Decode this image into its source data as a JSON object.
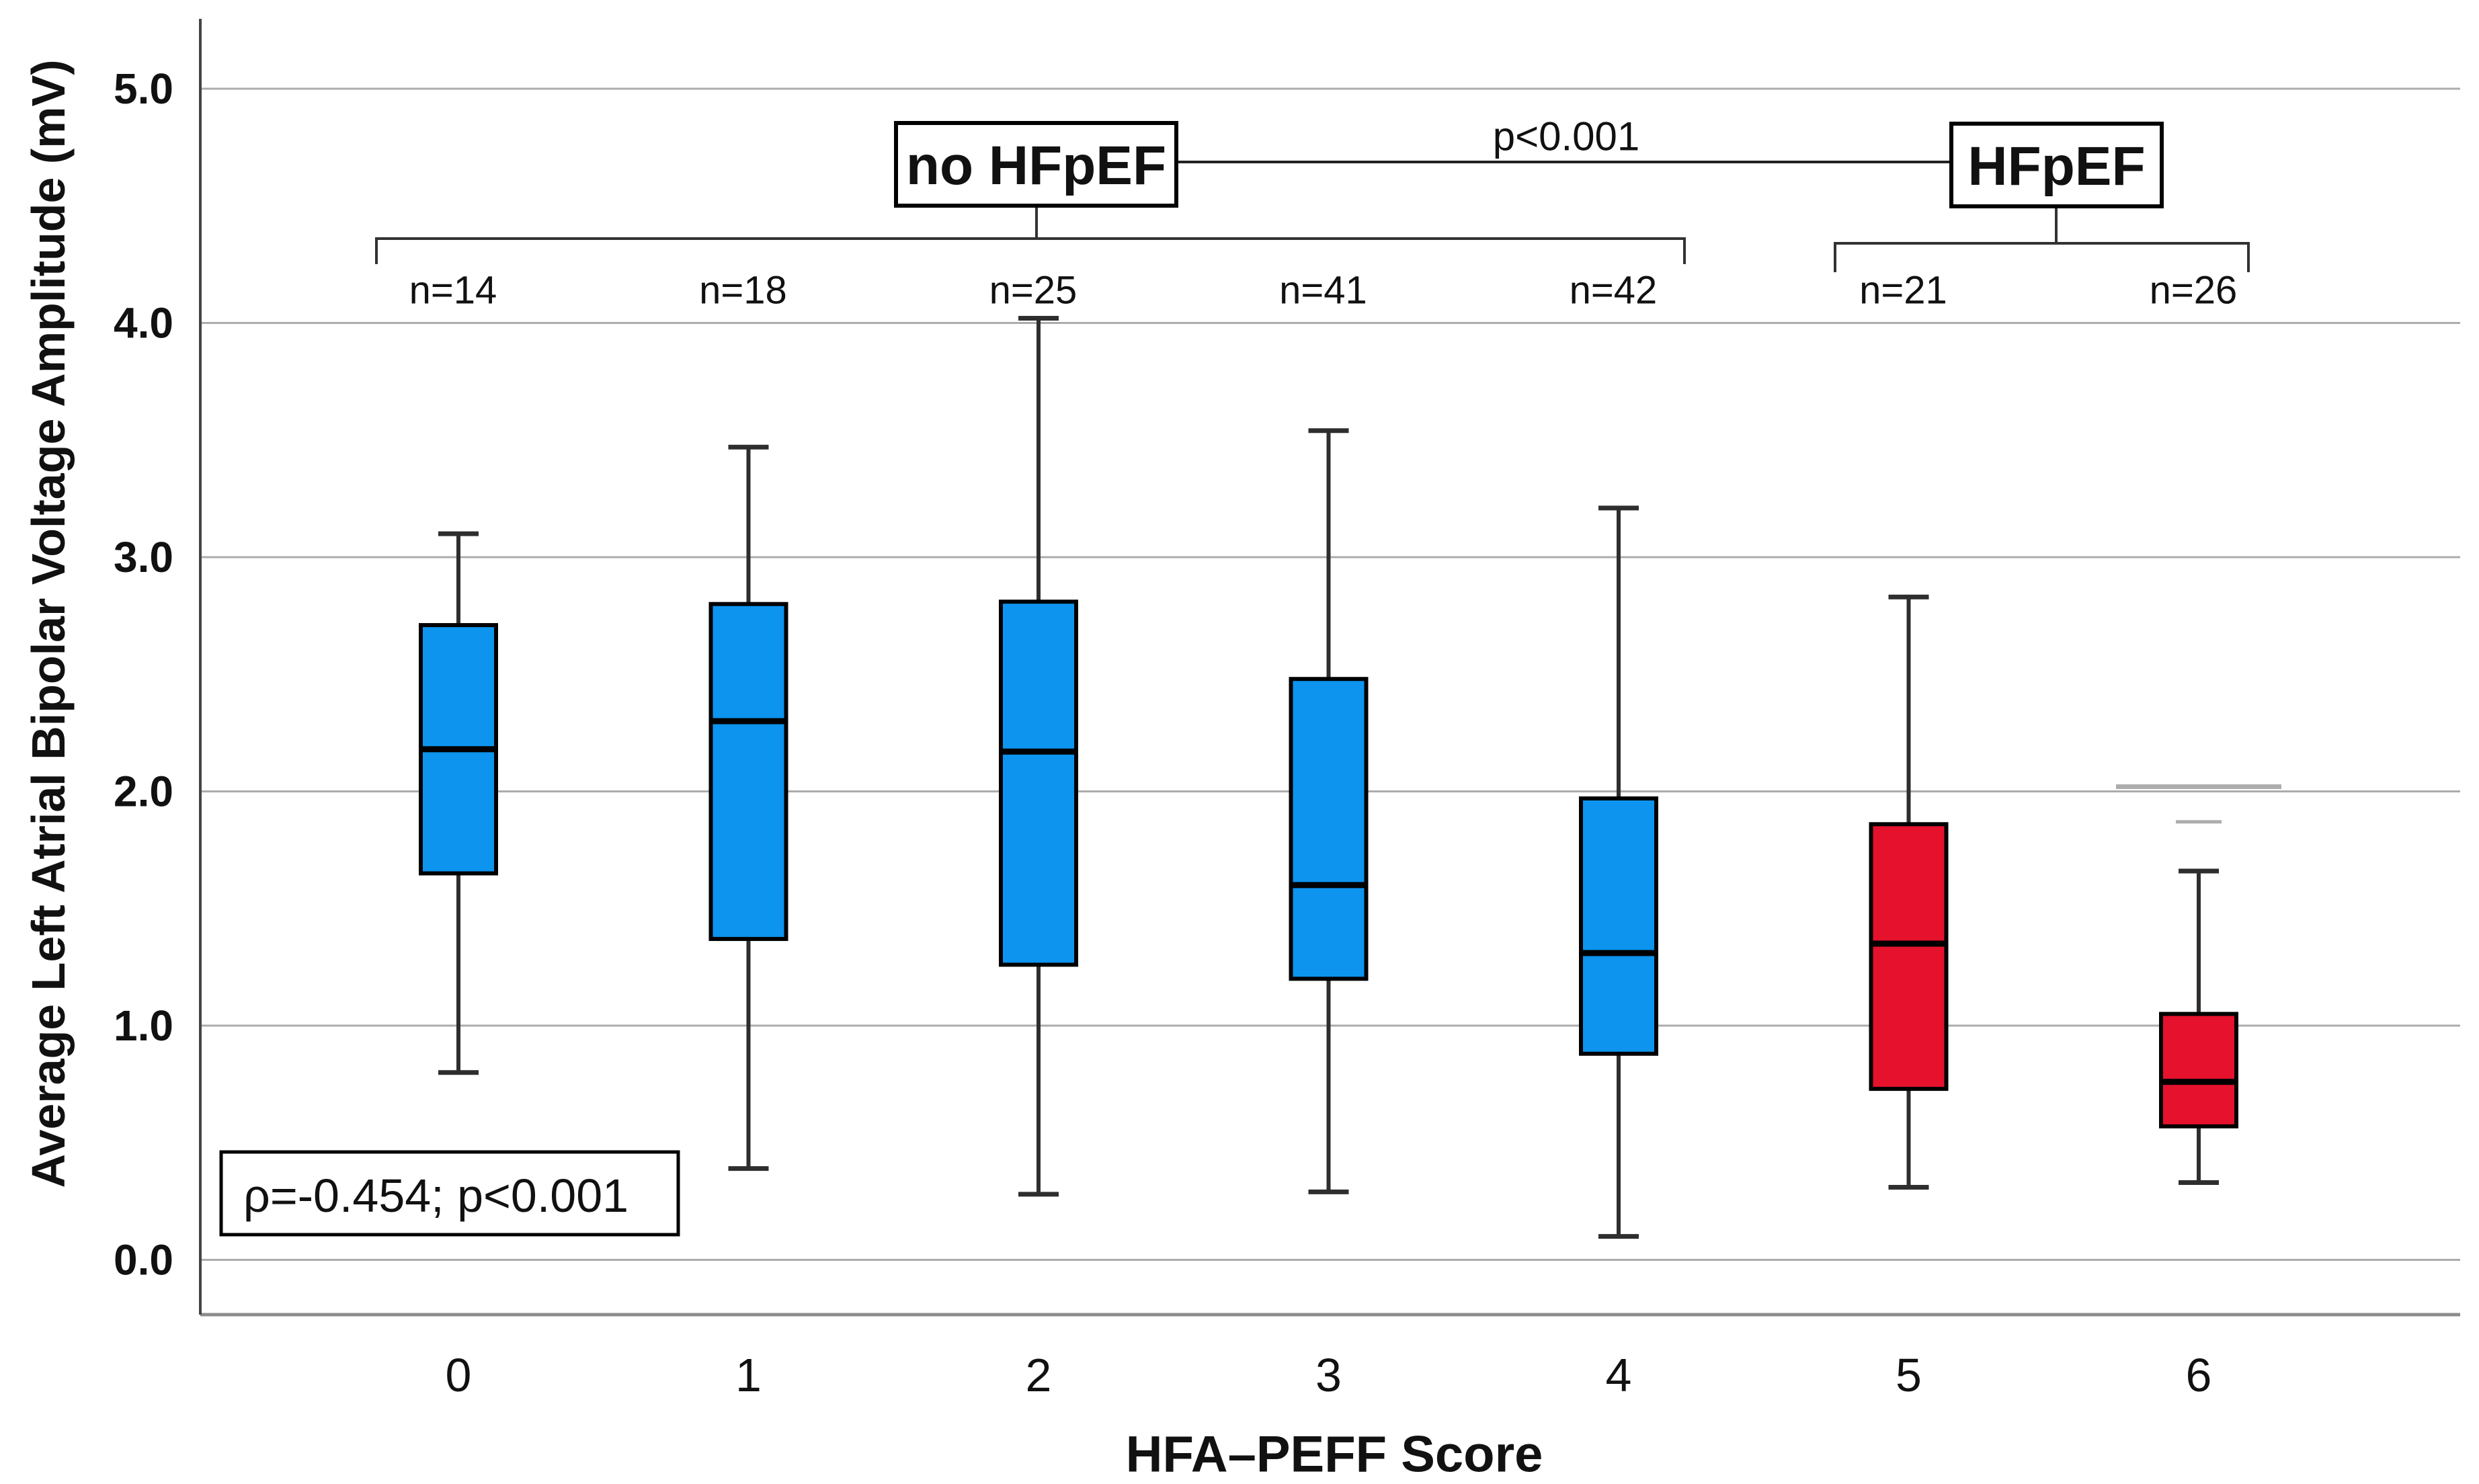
{
  "chart_data": {
    "type": "box",
    "title": "",
    "xlabel": "HFA–PEFF Score",
    "ylabel": "Average Left Atrial Bipolar Voltage Amplitude (mV)",
    "ylim": [
      0.0,
      5.0
    ],
    "grid": "horizontal",
    "y_tick_values": [
      5.0,
      4.0,
      3.0,
      2.0,
      1.0,
      0.0
    ],
    "y_tick_labels": [
      "5.0",
      "4.0",
      "3.0",
      "2.0",
      "1.0",
      "0.0"
    ],
    "x_tick_labels": [
      "0",
      "1",
      "2",
      "3",
      "4",
      "5",
      "6"
    ],
    "groups": [
      {
        "label": "no HFpEF",
        "scores": [
          0,
          1,
          2,
          3,
          4
        ],
        "color_key": "no_hfpef_fill"
      },
      {
        "label": "HFpEF",
        "scores": [
          5,
          6
        ],
        "color_key": "hfpef_fill"
      }
    ],
    "boxes": [
      {
        "score": "0",
        "n": 14,
        "n_label": "n=14",
        "min": 0.8,
        "q1": 1.65,
        "median": 2.18,
        "q3": 2.71,
        "max": 3.1,
        "group": "no HFpEF"
      },
      {
        "score": "1",
        "n": 18,
        "n_label": "n=18",
        "min": 0.39,
        "q1": 1.37,
        "median": 2.3,
        "q3": 2.8,
        "max": 3.47,
        "group": "no HFpEF"
      },
      {
        "score": "2",
        "n": 25,
        "n_label": "n=25",
        "min": 0.28,
        "q1": 1.26,
        "median": 2.17,
        "q3": 2.81,
        "max": 4.02,
        "group": "no HFpEF"
      },
      {
        "score": "3",
        "n": 41,
        "n_label": "n=41",
        "min": 0.29,
        "q1": 1.2,
        "median": 1.6,
        "q3": 2.48,
        "max": 3.54,
        "group": "no HFpEF"
      },
      {
        "score": "4",
        "n": 42,
        "n_label": "n=42",
        "min": 0.1,
        "q1": 0.88,
        "median": 1.31,
        "q3": 1.97,
        "max": 3.21,
        "group": "no HFpEF"
      },
      {
        "score": "5",
        "n": 21,
        "n_label": "n=21",
        "min": 0.31,
        "q1": 0.73,
        "median": 1.35,
        "q3": 1.86,
        "max": 2.83,
        "group": "HFpEF"
      },
      {
        "score": "6",
        "n": 26,
        "n_label": "n=26",
        "min": 0.33,
        "q1": 0.57,
        "median": 0.76,
        "q3": 1.05,
        "max": 1.66,
        "group": "HFpEF"
      }
    ],
    "faint_marks": [
      {
        "score": "6",
        "value": 2.02
      },
      {
        "score": "6",
        "value": 1.87
      }
    ],
    "annotations": {
      "group_left_label": "no HFpEF",
      "group_right_label": "HFpEF",
      "p_value_label": "p<0.001",
      "correlation_label": "ρ=-0.454; p<0.001"
    },
    "colors": {
      "no_hfpef_fill": "#0D94EE",
      "hfpef_fill": "#E5112D",
      "box_stroke": "#000000",
      "median_stroke": "#000000",
      "whisker": "#2E2E2E",
      "gridline": "#ACACAC",
      "axis_line": "#8C8C8C",
      "y_axis_line": "#444444",
      "faint_mark": "#9F9F9F",
      "annotation_border": "#000000",
      "text": "#111111"
    },
    "legend_position": "none"
  }
}
